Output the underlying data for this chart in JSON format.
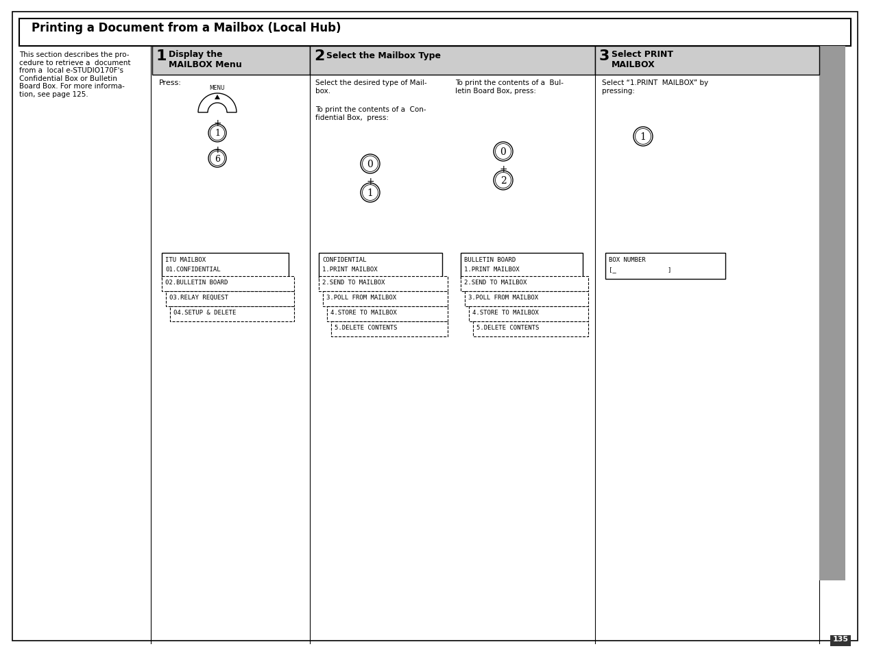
{
  "title": "Printing a Document from a Mailbox (Local Hub)",
  "page_number": "135",
  "intro_text": "This section describes the pro-\ncedure to retrieve a  document\nfrom a  local e-STUDIO170F's\nConfidential Box or Bulletin\nBoard Box. For more informa-\ntion, see page 125.",
  "step1_label": "1",
  "step1_line1": "Display the",
  "step1_line2": "MAILBOX Menu",
  "step2_label": "2",
  "step2_line1": "Select the Mailbox Type",
  "step3_label": "3",
  "step3_line1": "Select PRINT",
  "step3_line2": "MAILBOX",
  "press_text": "Press:",
  "step2_left_text1": "Select the desired type of Mail-\nbox.",
  "step2_left_text2": "To print the contents of a  Con-\nfidential Box,  press:",
  "step2_right_text": "To print the contents of a  Bul-\nletin Board Box, press:",
  "step3_text1": "Select “1.PRINT  MAILBOX” by\npressing:",
  "box1_solid": [
    "ITU MAILBOX",
    "01.CONFIDENTIAL"
  ],
  "box1_dashed": [
    "02.BULLETIN BOARD",
    "03.RELAY REQUEST",
    "04.SETUP & DELETE"
  ],
  "box2_solid": [
    "CONFIDENTIAL",
    "1.PRINT MAILBOX"
  ],
  "box2_dashed": [
    "2.SEND TO MAILBOX",
    "3.POLL FROM MAILBOX",
    "4.STORE TO MAILBOX",
    "5.DELETE CONTENTS"
  ],
  "box3_solid": [
    "BULLETIN BOARD",
    "1.PRINT MAILBOX"
  ],
  "box3_dashed": [
    "2.SEND TO MAILBOX",
    "3.POLL FROM MAILBOX",
    "4.STORE TO MAILBOX",
    "5.DELETE CONTENTS"
  ],
  "box4_solid": [
    "BOX NUMBER",
    "[_              ]"
  ],
  "bg_color": "#ffffff",
  "header_bg": "#cccccc",
  "sidebar_color": "#999999"
}
